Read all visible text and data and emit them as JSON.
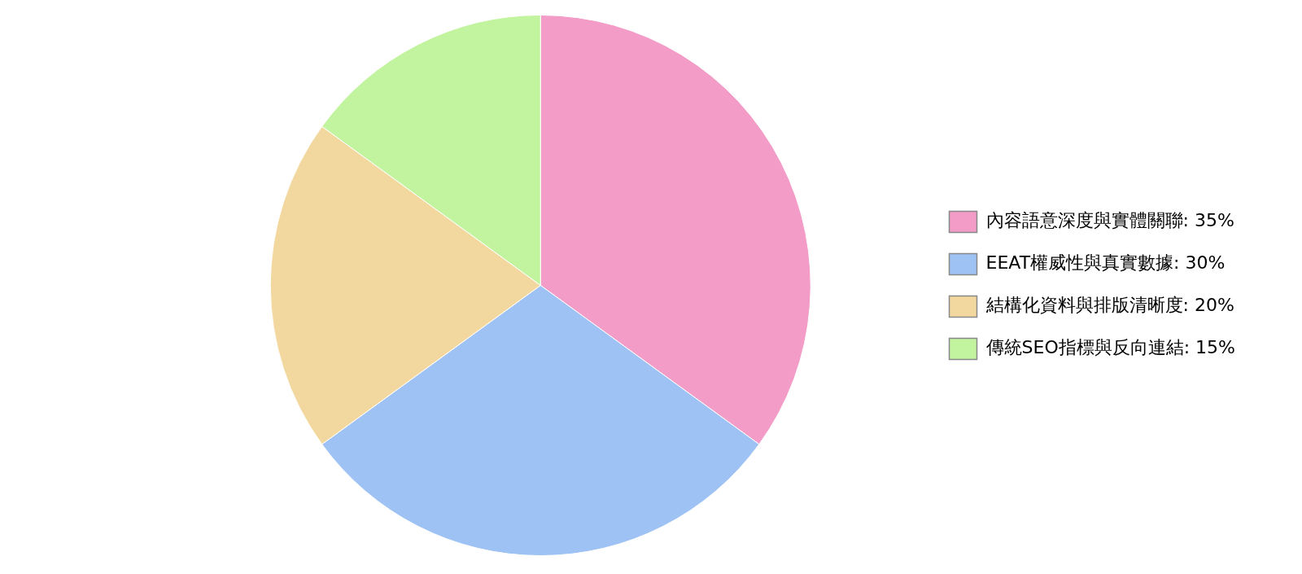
{
  "chart_data": {
    "type": "pie",
    "categories": [
      "內容語意深度與實體關聯: 35%",
      "EEAT權威性與真實數據: 30%",
      "結構化資料與排版清晰度: 20%",
      "傳統SEO指標與反向連結: 15%"
    ],
    "values": [
      35,
      30,
      20,
      15
    ],
    "colors": [
      "#f29cc7",
      "#9fc2f4",
      "#f2d89e",
      "#c2f4a0"
    ],
    "legend": "right"
  }
}
